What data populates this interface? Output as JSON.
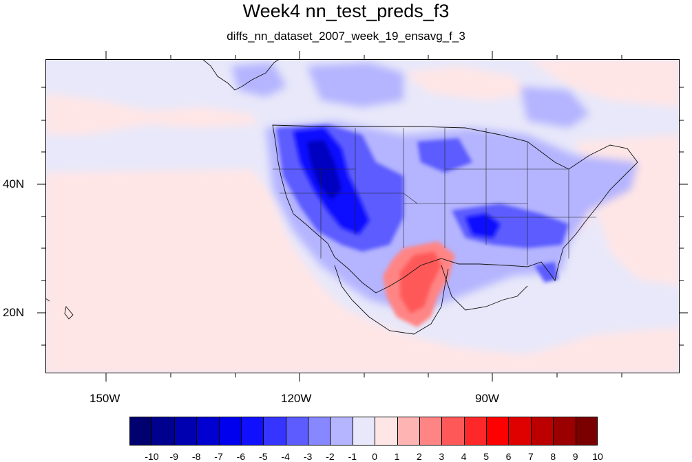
{
  "title": "Week4 nn_test_preds_f3",
  "subtitle": "diffs_nn_dataset_2007_week_19_ensavg_f_3",
  "map": {
    "lon_range": [
      -160,
      -62
    ],
    "lat_range": [
      10,
      59
    ],
    "x_tick_labels": [
      "150W",
      "120W",
      "90W"
    ],
    "y_tick_labels": [
      "40N",
      "20N"
    ],
    "background_color": "#e8e8fa"
  },
  "colorbar": {
    "tick_labels": [
      "-10",
      "-9",
      "-8",
      "-7",
      "-6",
      "-5",
      "-4",
      "-3",
      "-2",
      "-1",
      "0",
      "1",
      "2",
      "3",
      "4",
      "5",
      "6",
      "7",
      "8",
      "9",
      "10"
    ],
    "colors": [
      "#00006e",
      "#00008f",
      "#0000b0",
      "#0000d0",
      "#0000ef",
      "#1010ff",
      "#3535ff",
      "#5c5cff",
      "#8787ff",
      "#b4b4ff",
      "#e8e8fa",
      "#ffe6e6",
      "#ffb4b4",
      "#ff8585",
      "#ff5858",
      "#ff2828",
      "#ff0000",
      "#df0000",
      "#bc0000",
      "#9a0000",
      "#7a0000"
    ]
  }
}
